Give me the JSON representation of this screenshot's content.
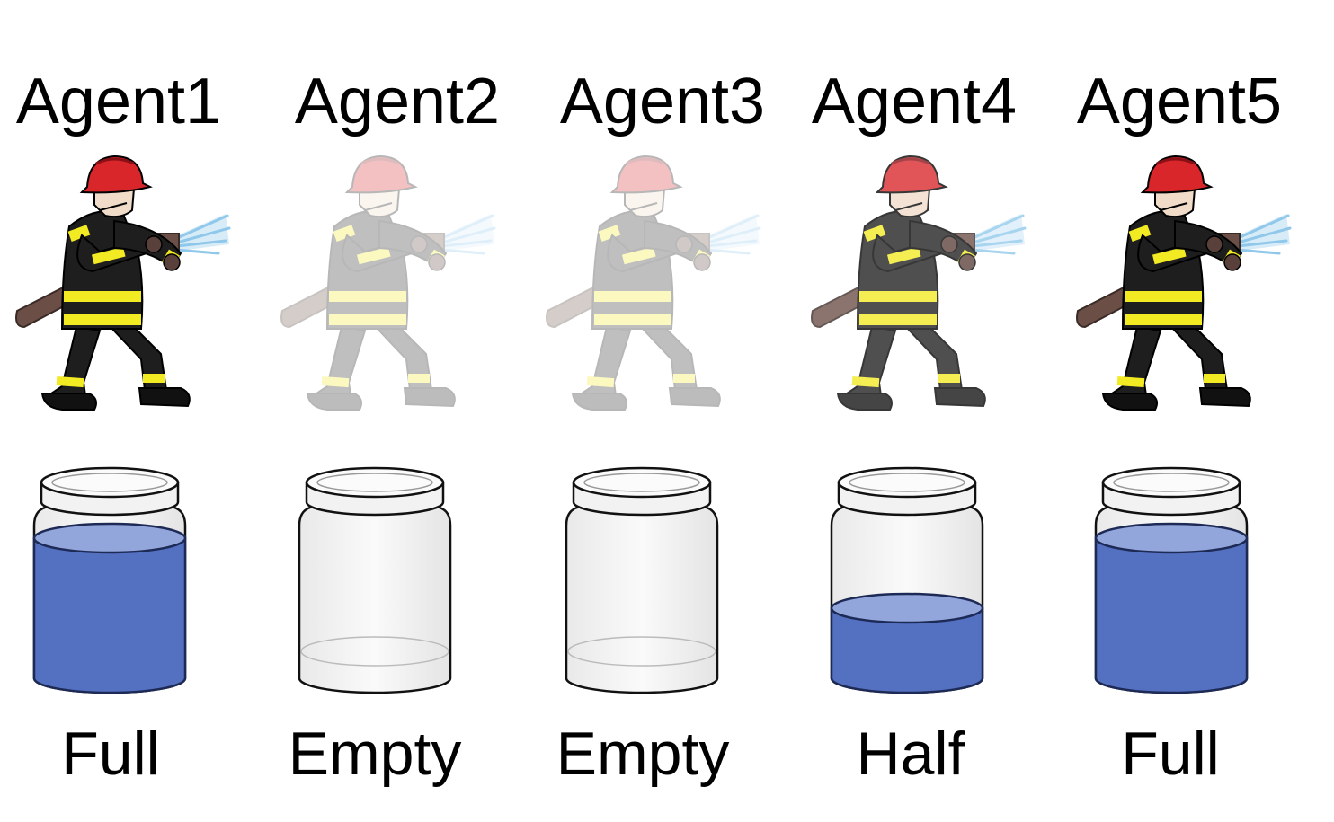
{
  "colors": {
    "water_body": "#5470C1",
    "water_surface": "#93A6DC",
    "helmet": "#D9262B",
    "coat": "#1E1E1E",
    "stripe": "#F2EA22",
    "hose": "#6B4E45",
    "skin": "#F1DCC9",
    "spray": "#8FC8EA"
  },
  "agents": [
    {
      "label": "Agent1",
      "state": "Full",
      "level": 1.0,
      "opacity": 1.0,
      "figure_icon": "firefighter-icon",
      "jar_icon": "water-jar-icon"
    },
    {
      "label": "Agent2",
      "state": "Empty",
      "level": 0.0,
      "opacity": 0.28,
      "figure_icon": "firefighter-icon",
      "jar_icon": "water-jar-icon"
    },
    {
      "label": "Agent3",
      "state": "Empty",
      "level": 0.0,
      "opacity": 0.28,
      "figure_icon": "firefighter-icon",
      "jar_icon": "water-jar-icon"
    },
    {
      "label": "Agent4",
      "state": "Half",
      "level": 0.5,
      "opacity": 0.78,
      "figure_icon": "firefighter-icon",
      "jar_icon": "water-jar-icon"
    },
    {
      "label": "Agent5",
      "state": "Full",
      "level": 1.0,
      "opacity": 1.0,
      "figure_icon": "firefighter-icon",
      "jar_icon": "water-jar-icon"
    }
  ]
}
